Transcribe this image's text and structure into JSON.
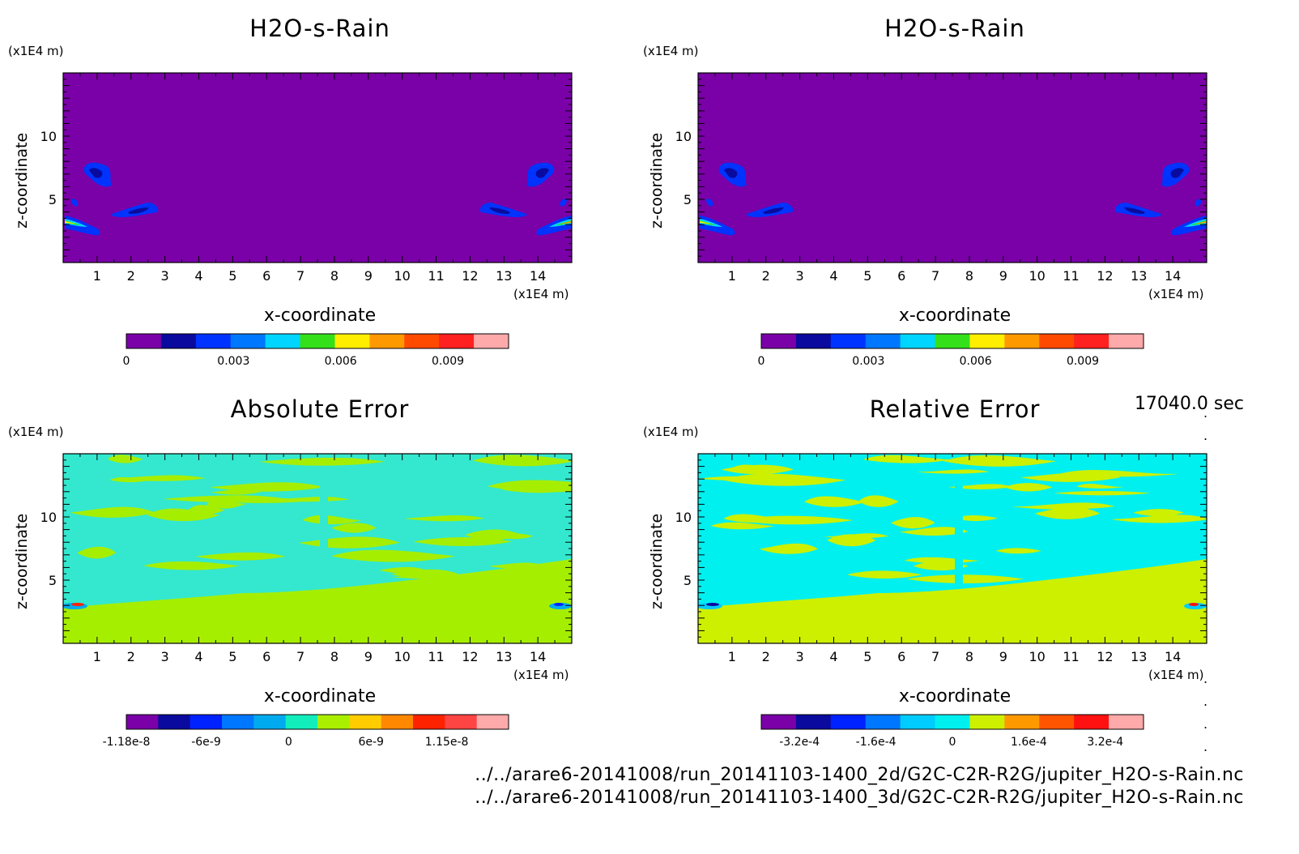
{
  "chart_data": [
    {
      "type": "heatmap",
      "id": "p1",
      "title": "H2O-s-Rain",
      "xlabel": "x-coordinate",
      "ylabel": "z-coordinate",
      "x_unit": "(x1E4 m)",
      "y_unit": "(x1E4 m)",
      "xlim": [
        0,
        15
      ],
      "ylim": [
        0,
        15
      ],
      "x_ticks": [
        "1",
        "2",
        "3",
        "4",
        "5",
        "6",
        "7",
        "8",
        "9",
        "10",
        "11",
        "12",
        "13",
        "14"
      ],
      "y_ticks": [
        "5",
        "10"
      ],
      "colorbar": {
        "colors": [
          "#7a00a8",
          "#0a0a9e",
          "#0033ff",
          "#0077ff",
          "#00d5ff",
          "#33e01a",
          "#ffee00",
          "#ff9900",
          "#ff4a00",
          "#ff2020",
          "#ffaaaa"
        ],
        "labels": [
          "0",
          "0.003",
          "0.006",
          "0.009"
        ],
        "label_positions": [
          0,
          0.003,
          0.006,
          0.009
        ],
        "range": [
          0,
          0.0107
        ]
      },
      "background_color": "#7a00a8",
      "field": "rain"
    },
    {
      "type": "heatmap",
      "id": "p2",
      "title": "H2O-s-Rain",
      "xlabel": "x-coordinate",
      "ylabel": "z-coordinate",
      "x_unit": "(x1E4 m)",
      "y_unit": "(x1E4 m)",
      "xlim": [
        0,
        15
      ],
      "ylim": [
        0,
        15
      ],
      "x_ticks": [
        "1",
        "2",
        "3",
        "4",
        "5",
        "6",
        "7",
        "8",
        "9",
        "10",
        "11",
        "12",
        "13",
        "14"
      ],
      "y_ticks": [
        "5",
        "10"
      ],
      "colorbar": {
        "colors": [
          "#7a00a8",
          "#0a0a9e",
          "#0033ff",
          "#0077ff",
          "#00d5ff",
          "#33e01a",
          "#ffee00",
          "#ff9900",
          "#ff4a00",
          "#ff2020",
          "#ffaaaa"
        ],
        "labels": [
          "0",
          "0.003",
          "0.006",
          "0.009"
        ],
        "label_positions": [
          0,
          0.003,
          0.006,
          0.009
        ],
        "range": [
          0,
          0.0107
        ]
      },
      "background_color": "#7a00a8",
      "field": "rain"
    },
    {
      "type": "heatmap",
      "id": "p3",
      "title": "Absolute Error",
      "xlabel": "x-coordinate",
      "ylabel": "z-coordinate",
      "x_unit": "(x1E4 m)",
      "y_unit": "(x1E4 m)",
      "xlim": [
        0,
        15
      ],
      "ylim": [
        0,
        15
      ],
      "x_ticks": [
        "1",
        "2",
        "3",
        "4",
        "5",
        "6",
        "7",
        "8",
        "9",
        "10",
        "11",
        "12",
        "13",
        "14"
      ],
      "y_ticks": [
        "5",
        "10"
      ],
      "colorbar": {
        "colors": [
          "#7a00a8",
          "#0a0a9e",
          "#0022ff",
          "#0077ff",
          "#00aaee",
          "#11eebb",
          "#aaee00",
          "#ffcc00",
          "#ff8800",
          "#ff2200",
          "#ff4444",
          "#ffaaaa"
        ],
        "labels": [
          "-1.18e-8",
          "-6e-9",
          "0",
          "6e-9",
          "1.15e-8"
        ],
        "label_positions": [
          -1.18e-08,
          -6e-09,
          0,
          6e-09,
          1.15e-08
        ],
        "range": [
          -1.18e-08,
          1.6e-08
        ]
      },
      "background_color": "#a6ee00",
      "pattern_color": "#33e8cf",
      "field": "error"
    },
    {
      "type": "heatmap",
      "id": "p4",
      "title": "Relative Error",
      "xlabel": "x-coordinate",
      "ylabel": "z-coordinate",
      "x_unit": "(x1E4 m)",
      "y_unit": "(x1E4 m)",
      "xlim": [
        0,
        15
      ],
      "ylim": [
        0,
        15
      ],
      "x_ticks": [
        "1",
        "2",
        "3",
        "4",
        "5",
        "6",
        "7",
        "8",
        "9",
        "10",
        "11",
        "12",
        "13",
        "14"
      ],
      "y_ticks": [
        "5",
        "10"
      ],
      "colorbar": {
        "colors": [
          "#7a00a8",
          "#0a0a9e",
          "#0022ff",
          "#0077ff",
          "#00ccff",
          "#00f0f0",
          "#ccf000",
          "#ff9900",
          "#ff5500",
          "#ff1111",
          "#ffaaaa"
        ],
        "labels": [
          "-3.2e-4",
          "-1.6e-4",
          "0",
          "1.6e-4",
          "3.2e-4"
        ],
        "label_positions": [
          -0.00032,
          -0.00016,
          0,
          0.00016,
          0.00032
        ],
        "range": [
          -0.0004,
          0.0004
        ]
      },
      "background_color": "#ccf000",
      "pattern_color": "#00f0f0",
      "field": "error"
    }
  ],
  "time_stamp": "17040.0 sec",
  "file_paths": [
    "../../arare6-20141008/run_20141103-1400_2d/G2C-C2R-R2G/jupiter_H2O-s-Rain.nc",
    "../../arare6-20141008/run_20141103-1400_3d/G2C-C2R-R2G/jupiter_H2O-s-Rain.nc"
  ]
}
